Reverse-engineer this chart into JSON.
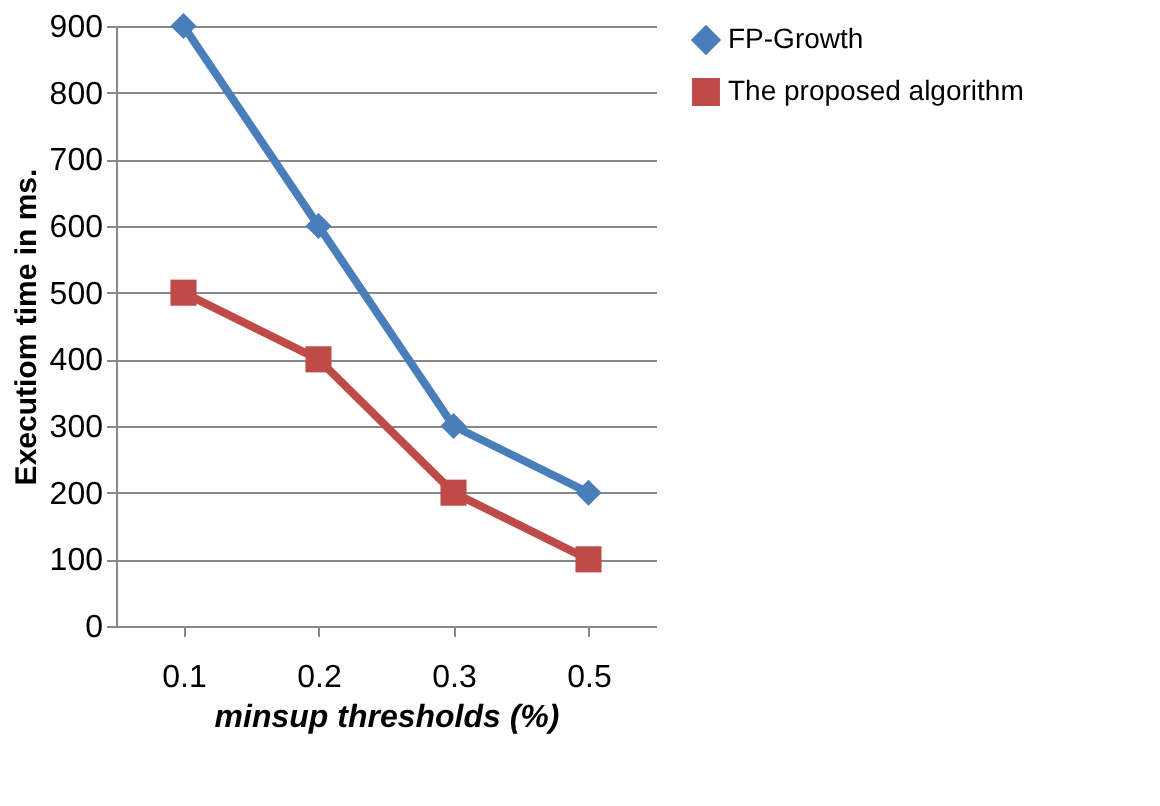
{
  "chart_data": {
    "type": "line",
    "xlabel": "minsup thresholds (%)",
    "ylabel": "Executiom time in ms.",
    "categories": [
      "0.1",
      "0.2",
      "0.3",
      "0.5"
    ],
    "series": [
      {
        "name": "FP-Growth",
        "color": "#4a7ebb",
        "marker": "diamond",
        "values": [
          900,
          600,
          300,
          200
        ]
      },
      {
        "name": "The proposed algorithm",
        "color": "#be4b48",
        "marker": "square",
        "values": [
          500,
          400,
          200,
          100
        ]
      }
    ],
    "ylim": [
      0,
      900
    ],
    "yticks": [
      0,
      100,
      200,
      300,
      400,
      500,
      600,
      700,
      800,
      900
    ],
    "grid": "y",
    "legend": "right"
  }
}
